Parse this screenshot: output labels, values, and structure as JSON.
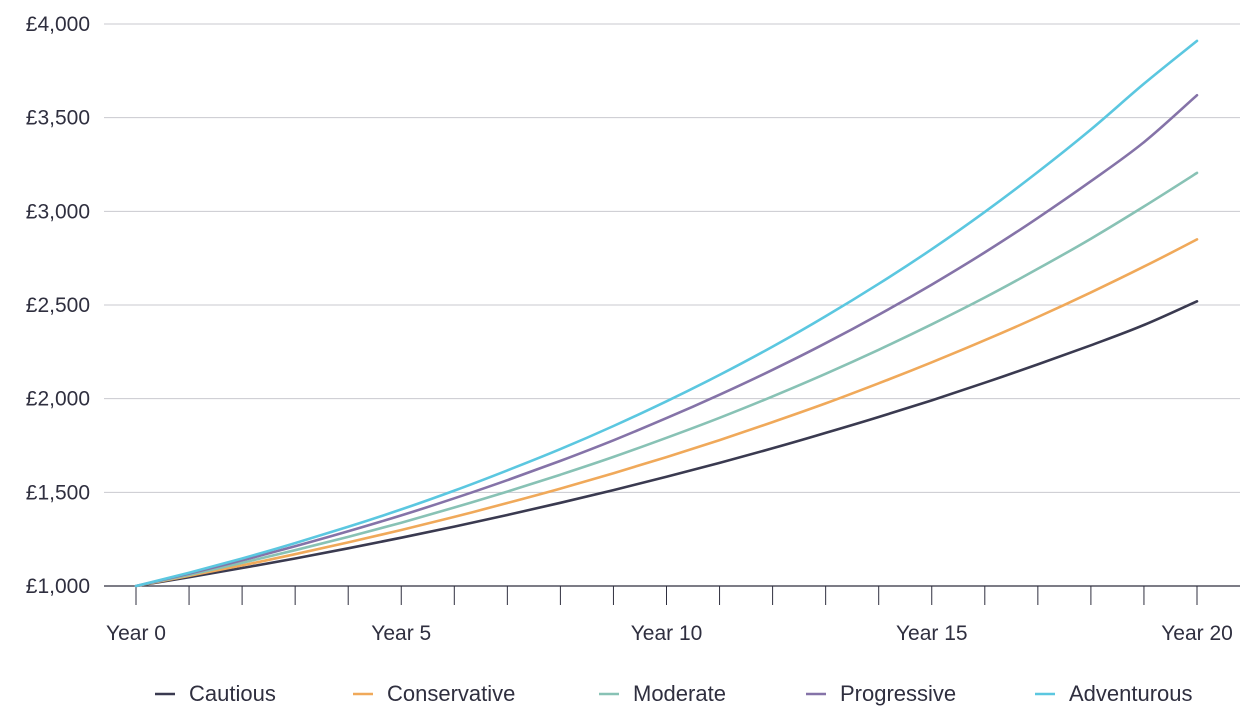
{
  "chart_data": {
    "type": "line",
    "title": "",
    "xlabel": "",
    "ylabel": "",
    "x": [
      0,
      1,
      2,
      3,
      4,
      5,
      6,
      7,
      8,
      9,
      10,
      11,
      12,
      13,
      14,
      15,
      16,
      17,
      18,
      19,
      20
    ],
    "x_tick_values": [
      0,
      5,
      10,
      15,
      20
    ],
    "x_tick_labels": [
      "Year 0",
      "Year 5",
      "Year 10",
      "Year 15",
      "Year 20"
    ],
    "ylim": [
      1000,
      4000
    ],
    "y_tick_values": [
      1000,
      1500,
      2000,
      2500,
      3000,
      3500,
      4000
    ],
    "y_tick_labels": [
      "£1,000",
      "£1,500",
      "£2,000",
      "£2,500",
      "£3,000",
      "£3,500",
      "£4,000"
    ],
    "grid": "horizontal",
    "legend_position": "bottom",
    "series": [
      {
        "name": "Cautious",
        "color": "#3a3a50",
        "values": [
          1000,
          1047,
          1096,
          1147,
          1201,
          1258,
          1317,
          1379,
          1444,
          1512,
          1583,
          1657,
          1735,
          1817,
          1902,
          1991,
          2085,
          2183,
          2285,
          2393,
          2520
        ]
      },
      {
        "name": "Conservative",
        "color": "#f0a95a",
        "values": [
          1000,
          1054,
          1110,
          1170,
          1233,
          1299,
          1369,
          1443,
          1520,
          1602,
          1688,
          1779,
          1875,
          1975,
          2082,
          2194,
          2312,
          2436,
          2567,
          2705,
          2850
        ]
      },
      {
        "name": "Moderate",
        "color": "#88c2b5",
        "values": [
          1000,
          1060,
          1124,
          1191,
          1262,
          1338,
          1419,
          1504,
          1594,
          1689,
          1791,
          1898,
          2012,
          2133,
          2261,
          2397,
          2540,
          2693,
          2854,
          3026,
          3205
        ]
      },
      {
        "name": "Progressive",
        "color": "#8573a8",
        "values": [
          1000,
          1066,
          1137,
          1212,
          1292,
          1377,
          1468,
          1565,
          1668,
          1778,
          1896,
          2021,
          2154,
          2296,
          2448,
          2609,
          2781,
          2965,
          3161,
          3369,
          3620
        ]
      },
      {
        "name": "Adventurous",
        "color": "#5bc7e0",
        "values": [
          1000,
          1071,
          1147,
          1229,
          1316,
          1409,
          1509,
          1617,
          1731,
          1854,
          1986,
          2127,
          2278,
          2440,
          2613,
          2798,
          2997,
          3210,
          3437,
          3681,
          3910
        ]
      }
    ]
  }
}
